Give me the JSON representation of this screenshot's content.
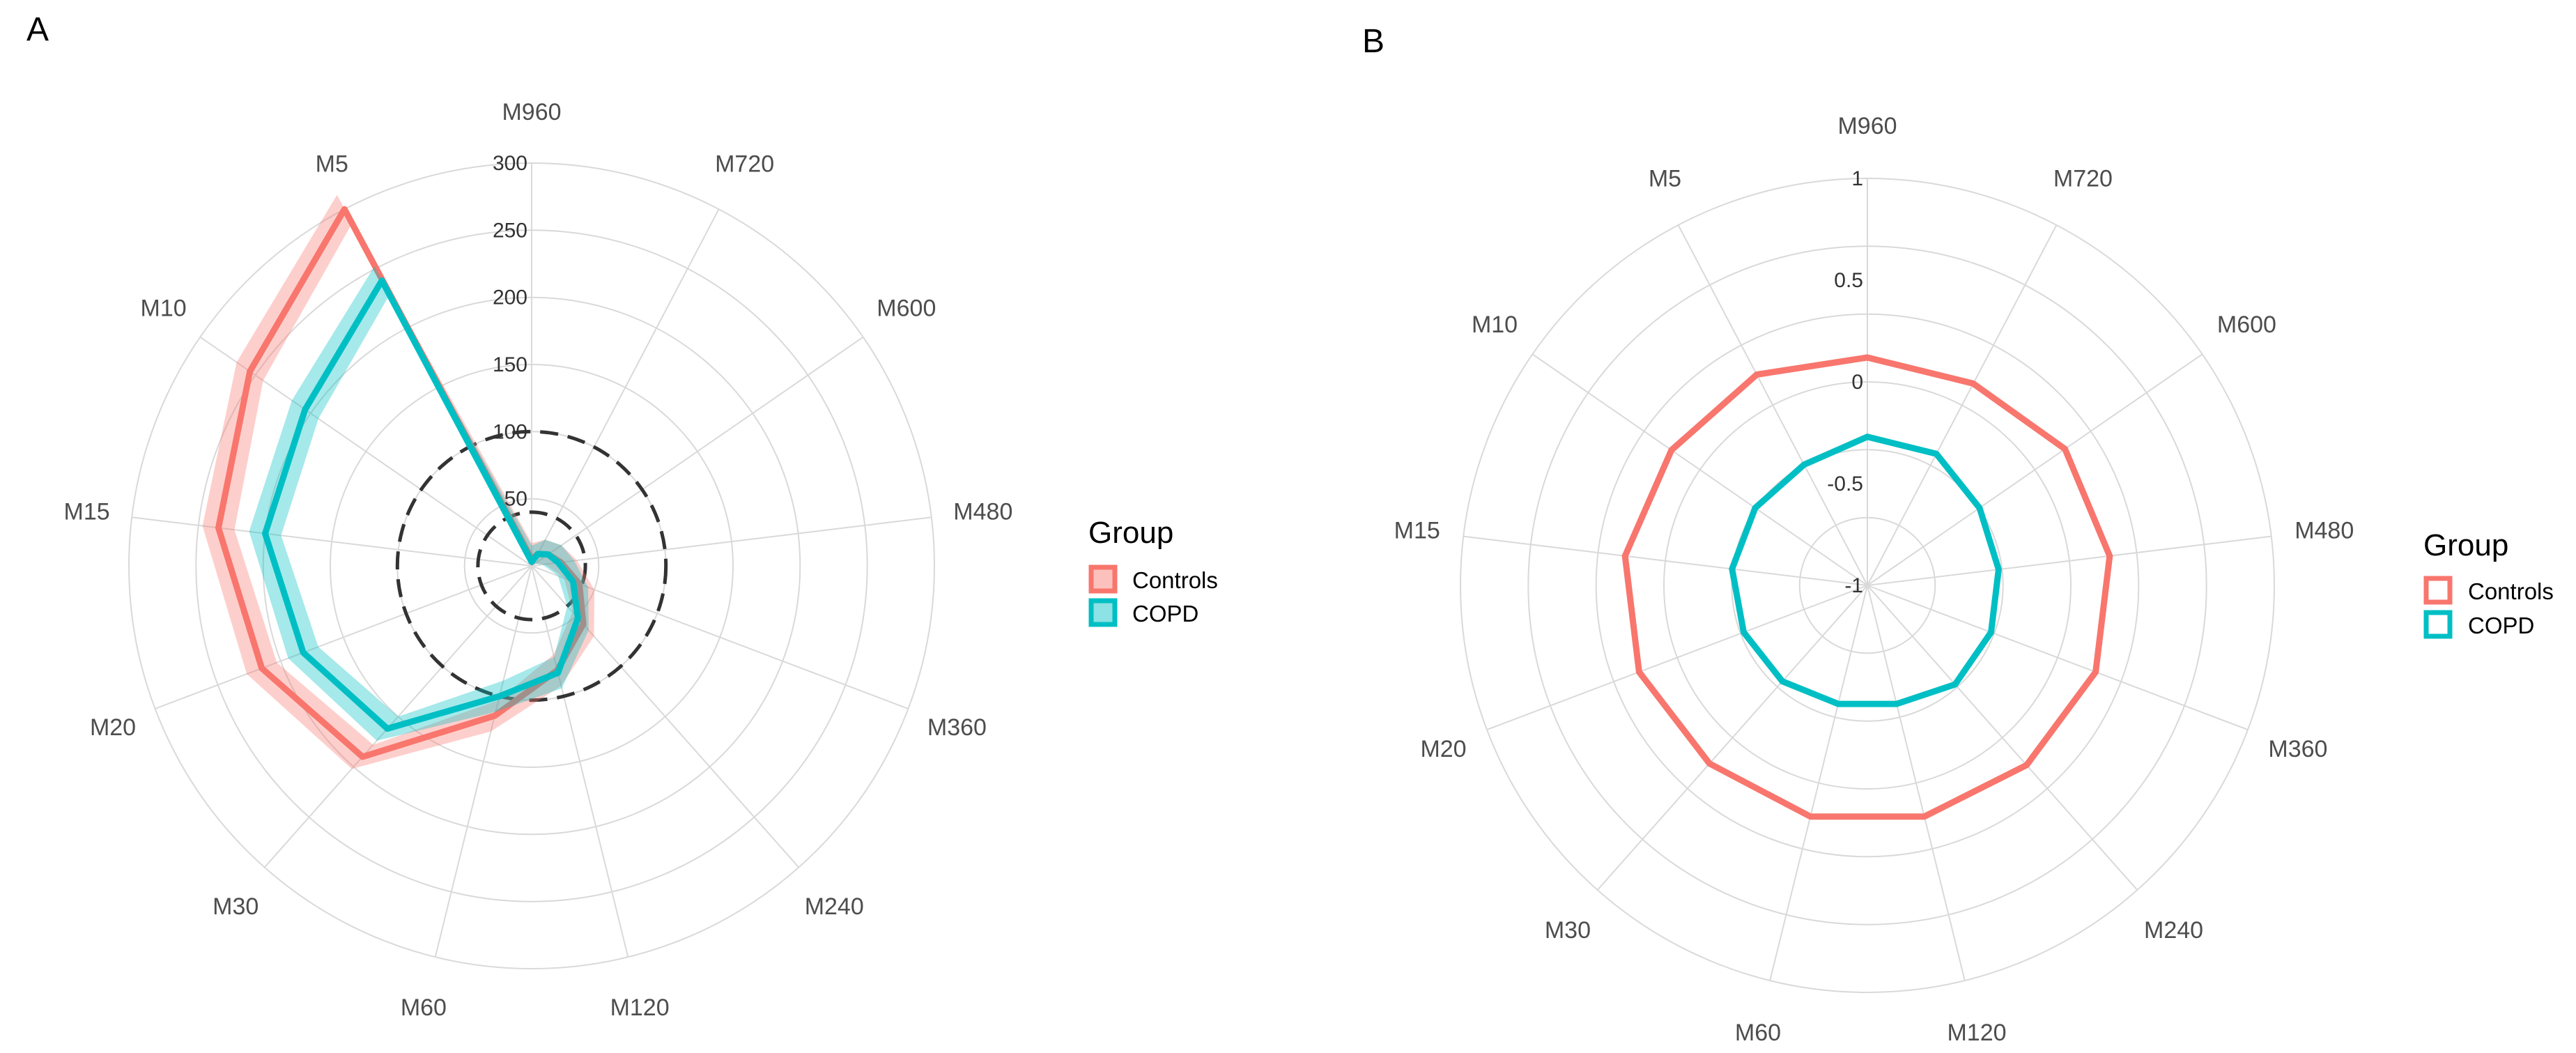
{
  "chart_data": [
    {
      "panel": "A",
      "type": "radar",
      "spokes": [
        "M960",
        "M720",
        "M600",
        "M480",
        "M360",
        "M240",
        "M120",
        "M60",
        "M30",
        "M20",
        "M15",
        "M10",
        "M5"
      ],
      "rlim": [
        0,
        300
      ],
      "ticks": [
        "50",
        "100",
        "150",
        "200",
        "250",
        "300"
      ],
      "tick_values": [
        50,
        100,
        150,
        200,
        250,
        300
      ],
      "reference_circles": [
        40,
        100
      ],
      "legend_title": "Group",
      "legend_style": "filled",
      "series": [
        {
          "name": "Controls",
          "color": "#F8766D",
          "band": 12,
          "values": [
            5,
            10,
            15,
            22,
            38,
            58,
            80,
            115,
            190,
            215,
            235,
            255,
            300
          ]
        },
        {
          "name": "COPD",
          "color": "#00BFC4",
          "band": 12,
          "values": [
            3,
            10,
            15,
            20,
            33,
            52,
            82,
            100,
            162,
            182,
            200,
            205,
            240
          ]
        }
      ]
    },
    {
      "panel": "B",
      "type": "radar",
      "spokes": [
        "M960",
        "M720",
        "M600",
        "M480",
        "M360",
        "M240",
        "M120",
        "M60",
        "M30",
        "M20",
        "M15",
        "M10",
        "M5"
      ],
      "rlim": [
        -1,
        1
      ],
      "ticks": [
        "-1",
        "-0.5",
        "0",
        "0.5",
        "1"
      ],
      "tick_values": [
        -1,
        -0.5,
        0,
        0.5,
        1
      ],
      "legend_title": "Group",
      "legend_style": "outline",
      "series": [
        {
          "name": "Controls",
          "color": "#F8766D",
          "values": [
            0.12,
            0.12,
            0.18,
            0.2,
            0.2,
            0.18,
            0.17,
            0.17,
            0.17,
            0.2,
            0.2,
            0.17,
            0.17
          ]
        },
        {
          "name": "COPD",
          "color": "#00BFC4",
          "values": [
            -0.27,
            -0.27,
            -0.33,
            -0.35,
            -0.35,
            -0.35,
            -0.4,
            -0.4,
            -0.37,
            -0.35,
            -0.33,
            -0.33,
            -0.33
          ]
        }
      ]
    }
  ]
}
